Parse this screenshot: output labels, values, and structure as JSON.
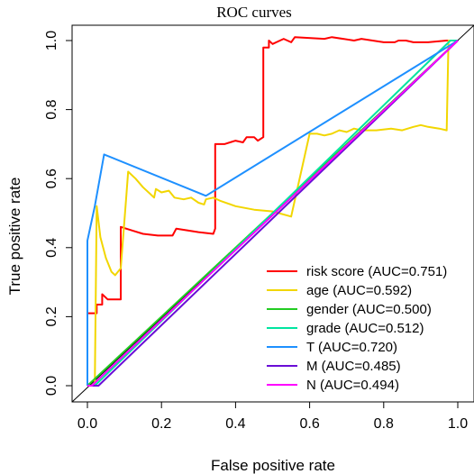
{
  "chart_data": {
    "type": "line",
    "title": "ROC  curves",
    "xlabel": "False positive rate",
    "ylabel": "True positive rate",
    "xlim": [
      0,
      1
    ],
    "ylim": [
      0,
      1
    ],
    "xticks": [
      0,
      0.2,
      0.4,
      0.6,
      0.8,
      1
    ],
    "xtick_labels": [
      "0.0",
      "0.2",
      "0.4",
      "0.6",
      "0.8",
      "1.0"
    ],
    "yticks": [
      0,
      0.2,
      0.4,
      0.6,
      0.8,
      1
    ],
    "ytick_labels": [
      "0.0",
      "0.2",
      "0.4",
      "0.6",
      "0.8",
      "1.0"
    ],
    "grid": false,
    "legend_position": "bottom-right",
    "diagonal_reference": true,
    "series": [
      {
        "name": "risk score (AUC=0.751)",
        "color": "#ff0000",
        "points": [
          [
            0,
            0.21
          ],
          [
            0.025,
            0.21
          ],
          [
            0.025,
            0.235
          ],
          [
            0.04,
            0.235
          ],
          [
            0.04,
            0.265
          ],
          [
            0.055,
            0.25
          ],
          [
            0.09,
            0.25
          ],
          [
            0.09,
            0.46
          ],
          [
            0.12,
            0.45
          ],
          [
            0.15,
            0.44
          ],
          [
            0.19,
            0.435
          ],
          [
            0.23,
            0.435
          ],
          [
            0.24,
            0.455
          ],
          [
            0.3,
            0.445
          ],
          [
            0.34,
            0.44
          ],
          [
            0.345,
            0.455
          ],
          [
            0.345,
            0.7
          ],
          [
            0.37,
            0.7
          ],
          [
            0.385,
            0.705
          ],
          [
            0.4,
            0.71
          ],
          [
            0.42,
            0.705
          ],
          [
            0.43,
            0.72
          ],
          [
            0.45,
            0.72
          ],
          [
            0.46,
            0.71
          ],
          [
            0.475,
            0.72
          ],
          [
            0.475,
            0.98
          ],
          [
            0.49,
            0.98
          ],
          [
            0.49,
            1.0
          ],
          [
            0.5,
            0.99
          ],
          [
            0.52,
            1.0
          ],
          [
            0.53,
            1.005
          ],
          [
            0.55,
            0.995
          ],
          [
            0.56,
            1.01
          ],
          [
            0.64,
            1.005
          ],
          [
            0.66,
            1.01
          ],
          [
            0.72,
            1.0
          ],
          [
            0.74,
            1.005
          ],
          [
            0.8,
            0.995
          ],
          [
            0.83,
            0.995
          ],
          [
            0.84,
            1.0
          ],
          [
            0.86,
            1.0
          ],
          [
            0.88,
            0.995
          ],
          [
            0.92,
            0.995
          ],
          [
            0.97,
            1.0
          ],
          [
            1,
            1
          ]
        ]
      },
      {
        "name": "age (AUC=0.592)",
        "color": "#f2d600",
        "points": [
          [
            0,
            0
          ],
          [
            0.02,
            0
          ],
          [
            0.025,
            0.52
          ],
          [
            0.035,
            0.43
          ],
          [
            0.05,
            0.37
          ],
          [
            0.065,
            0.33
          ],
          [
            0.075,
            0.32
          ],
          [
            0.09,
            0.34
          ],
          [
            0.105,
            0.55
          ],
          [
            0.11,
            0.62
          ],
          [
            0.13,
            0.6
          ],
          [
            0.15,
            0.575
          ],
          [
            0.17,
            0.555
          ],
          [
            0.18,
            0.545
          ],
          [
            0.185,
            0.57
          ],
          [
            0.2,
            0.56
          ],
          [
            0.22,
            0.565
          ],
          [
            0.235,
            0.545
          ],
          [
            0.26,
            0.54
          ],
          [
            0.28,
            0.545
          ],
          [
            0.3,
            0.53
          ],
          [
            0.315,
            0.525
          ],
          [
            0.32,
            0.54
          ],
          [
            0.34,
            0.545
          ],
          [
            0.36,
            0.535
          ],
          [
            0.4,
            0.52
          ],
          [
            0.45,
            0.51
          ],
          [
            0.5,
            0.505
          ],
          [
            0.55,
            0.49
          ],
          [
            0.6,
            0.73
          ],
          [
            0.62,
            0.73
          ],
          [
            0.64,
            0.725
          ],
          [
            0.66,
            0.73
          ],
          [
            0.68,
            0.74
          ],
          [
            0.7,
            0.735
          ],
          [
            0.72,
            0.745
          ],
          [
            0.74,
            0.74
          ],
          [
            0.78,
            0.74
          ],
          [
            0.82,
            0.745
          ],
          [
            0.85,
            0.74
          ],
          [
            0.88,
            0.75
          ],
          [
            0.9,
            0.755
          ],
          [
            0.92,
            0.75
          ],
          [
            0.95,
            0.745
          ],
          [
            0.97,
            0.74
          ],
          [
            0.975,
            1.0
          ],
          [
            1,
            1
          ]
        ]
      },
      {
        "name": "gender (AUC=0.500)",
        "color": "#22cc22",
        "points": [
          [
            0,
            0
          ],
          [
            1,
            1
          ]
        ]
      },
      {
        "name": "grade (AUC=0.512)",
        "color": "#00e5a0",
        "points": [
          [
            0,
            0
          ],
          [
            0.02,
            0
          ],
          [
            0.98,
            1.0
          ],
          [
            1,
            1
          ]
        ]
      },
      {
        "name": "T (AUC=0.720)",
        "color": "#1e90ff",
        "points": [
          [
            0,
            0
          ],
          [
            0,
            0.42
          ],
          [
            0.02,
            0.52
          ],
          [
            0.045,
            0.67
          ],
          [
            0.32,
            0.55
          ],
          [
            1,
            1
          ]
        ]
      },
      {
        "name": "M (AUC=0.485)",
        "color": "#6a0dd6",
        "points": [
          [
            0,
            0
          ],
          [
            0.03,
            0
          ],
          [
            1,
            1
          ]
        ]
      },
      {
        "name": "N (AUC=0.494)",
        "color": "#ff00ff",
        "points": [
          [
            0,
            0
          ],
          [
            0.012,
            0
          ],
          [
            1,
            1
          ]
        ]
      }
    ]
  }
}
